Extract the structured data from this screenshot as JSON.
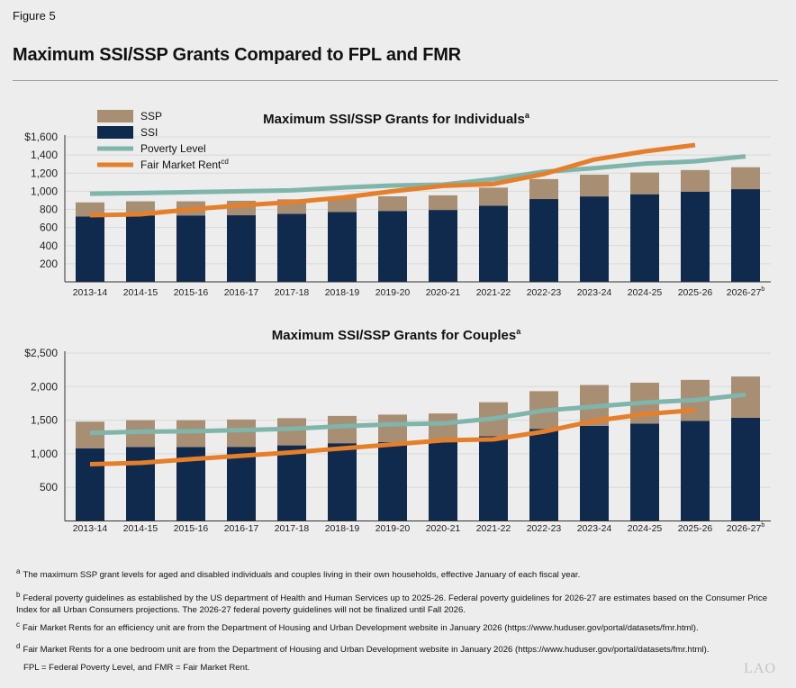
{
  "figure_label": "Figure 5",
  "title": "Maximum SSI/SSP Grants Compared to FPL and FMR",
  "colors": {
    "ssp": "#a88f74",
    "ssi": "#0f2a4d",
    "poverty": "#7fb5aa",
    "fmr": "#e57f2a",
    "grid": "#d8d9d8"
  },
  "legend": [
    {
      "label": "SSP",
      "sup": "",
      "type": "box",
      "color": "#a88f74"
    },
    {
      "label": "SSI",
      "sup": "",
      "type": "box",
      "color": "#0f2a4d"
    },
    {
      "label": "Poverty Level",
      "sup": "",
      "type": "line",
      "color": "#7fb5aa"
    },
    {
      "label": "Fair Market Rent",
      "sup": "cd",
      "type": "line",
      "color": "#e57f2a"
    }
  ],
  "chart_data": [
    {
      "type": "bar",
      "stacked": true,
      "title": "Maximum SSI/SSP Grants for Individuals",
      "title_sup": "a",
      "categories": [
        "2013-14",
        "2014-15",
        "2015-16",
        "2016-17",
        "2017-18",
        "2018-19",
        "2019-20",
        "2020-21",
        "2021-22",
        "2022-23",
        "2023-24",
        "2024-25",
        "2025-26",
        "2026-27"
      ],
      "category_sups": [
        "",
        "",
        "",
        "",
        "",
        "",
        "",
        "",
        "",
        "",
        "",
        "",
        "",
        "b"
      ],
      "ylim": [
        0,
        1600
      ],
      "yticks": [
        200,
        400,
        600,
        800,
        1000,
        1200,
        1400,
        1600
      ],
      "ytick_labels": [
        "200",
        "400",
        "600",
        "800",
        "1,000",
        "1,200",
        "1,400",
        "$1,600"
      ],
      "grid": true,
      "legend_position": "top-left",
      "series": [
        {
          "name": "SSI",
          "type": "bar",
          "values": [
            721,
            733,
            733,
            735,
            750,
            771,
            783,
            794,
            841,
            914,
            943,
            967,
            994,
            1023
          ]
        },
        {
          "name": "SSP",
          "type": "bar",
          "values": [
            156,
            156,
            156,
            160,
            161,
            161,
            161,
            161,
            199,
            220,
            240,
            240,
            240,
            242
          ]
        },
        {
          "name": "Poverty Level",
          "type": "line",
          "values": [
            973,
            980,
            990,
            1000,
            1010,
            1040,
            1063,
            1073,
            1133,
            1215,
            1255,
            1305,
            1330,
            1385
          ]
        },
        {
          "name": "Fair Market Rent",
          "type": "line",
          "values": [
            735,
            745,
            800,
            845,
            880,
            930,
            1000,
            1060,
            1080,
            1190,
            1350,
            1440,
            1510,
            null
          ]
        }
      ]
    },
    {
      "type": "bar",
      "stacked": true,
      "title": "Maximum SSI/SSP Grants for Couples",
      "title_sup": "a",
      "categories": [
        "2013-14",
        "2014-15",
        "2015-16",
        "2016-17",
        "2017-18",
        "2018-19",
        "2019-20",
        "2020-21",
        "2021-22",
        "2022-23",
        "2023-24",
        "2024-25",
        "2025-26",
        "2026-27"
      ],
      "category_sups": [
        "",
        "",
        "",
        "",
        "",
        "",
        "",
        "",
        "",
        "",
        "",
        "",
        "",
        "b"
      ],
      "ylim": [
        0,
        2500
      ],
      "yticks": [
        500,
        1000,
        1500,
        2000,
        2500
      ],
      "ytick_labels": [
        "500",
        "1,000",
        "1,500",
        "2,000",
        "$2,500"
      ],
      "grid": true,
      "series": [
        {
          "name": "SSI",
          "type": "bar",
          "values": [
            1082,
            1100,
            1100,
            1103,
            1125,
            1157,
            1175,
            1191,
            1261,
            1371,
            1415,
            1450,
            1491,
            1535
          ]
        },
        {
          "name": "SSP",
          "type": "bar",
          "values": [
            396,
            400,
            400,
            407,
            405,
            406,
            408,
            409,
            506,
            561,
            609,
            608,
            609,
            615
          ]
        },
        {
          "name": "Poverty Level",
          "type": "line",
          "values": [
            1311,
            1328,
            1335,
            1353,
            1372,
            1410,
            1440,
            1452,
            1525,
            1643,
            1703,
            1763,
            1800,
            1880
          ]
        },
        {
          "name": "Fair Market Rent",
          "type": "line",
          "values": [
            845,
            865,
            920,
            970,
            1020,
            1080,
            1140,
            1200,
            1215,
            1330,
            1490,
            1590,
            1650,
            null
          ]
        }
      ]
    }
  ],
  "footnotes": [
    {
      "mark": "a",
      "text": "The maximum SSP grant levels for aged and disabled individuals and couples living in their own households, effective January of each fiscal year."
    },
    {
      "mark": "b",
      "text": "Federal poverty guidelines as established by the US department of Health and Human Services up to 2025-26. Federal poverty guidelines for 2026-27 are estimates based on the Consumer Price Index for all Urban Consumers projections. The 2026-27 federal poverty guidelines will not be finalized until Fall 2026."
    },
    {
      "mark": "c",
      "text": "Fair Market Rents for an efficiency unit are from the Department of Housing and Urban Development website in January 2026 (https://www.huduser.gov/portal/datasets/fmr.html)."
    },
    {
      "mark": "d",
      "text": "Fair Market Rents for a one bedroom unit are from the Department of Housing and Urban Development website in January 2026 (https://www.huduser.gov/portal/datasets/fmr.html)."
    },
    {
      "mark": "",
      "text": "FPL = Federal Poverty Level, and FMR = Fair Market Rent."
    }
  ],
  "logo": "LAO"
}
